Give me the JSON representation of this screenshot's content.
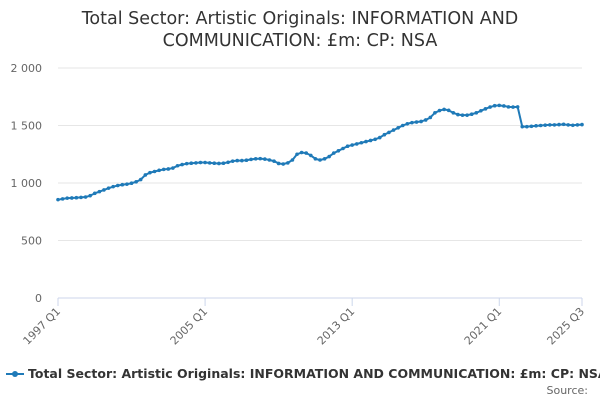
{
  "chart_data": {
    "type": "line",
    "title_lines": [
      "Total Sector: Artistic Originals: INFORMATION AND",
      "COMMUNICATION: £m: CP: NSA"
    ],
    "xlabel": "",
    "ylabel": "",
    "ylim": [
      0,
      2000
    ],
    "yticks": [
      0,
      500,
      1000,
      1500,
      2000
    ],
    "ytick_labels": [
      "0",
      "500",
      "1 000",
      "1 500",
      "2 000"
    ],
    "xticks": [
      "1997 Q1",
      "2005 Q1",
      "2013 Q1",
      "2021 Q1",
      "2025 Q3"
    ],
    "grid": "horizontal",
    "legend_position": "bottom",
    "series": [
      {
        "name": "Total Sector: Artistic Originals: INFORMATION AND COMMUNICATION: £m: CP: NSA",
        "color": "#1f7ab8",
        "start": "1997 Q1",
        "end": "2025 Q3",
        "values": [
          855,
          862,
          868,
          870,
          872,
          875,
          878,
          890,
          910,
          925,
          940,
          955,
          968,
          978,
          985,
          990,
          998,
          1010,
          1030,
          1070,
          1090,
          1100,
          1110,
          1118,
          1122,
          1130,
          1150,
          1160,
          1168,
          1172,
          1175,
          1178,
          1178,
          1175,
          1172,
          1170,
          1172,
          1180,
          1190,
          1195,
          1195,
          1198,
          1205,
          1210,
          1212,
          1208,
          1200,
          1190,
          1170,
          1165,
          1175,
          1200,
          1250,
          1265,
          1260,
          1240,
          1210,
          1200,
          1210,
          1230,
          1260,
          1280,
          1300,
          1320,
          1330,
          1340,
          1350,
          1360,
          1370,
          1380,
          1395,
          1420,
          1440,
          1460,
          1480,
          1500,
          1515,
          1525,
          1530,
          1535,
          1548,
          1570,
          1610,
          1630,
          1640,
          1632,
          1610,
          1595,
          1590,
          1590,
          1598,
          1610,
          1628,
          1645,
          1660,
          1672,
          1675,
          1670,
          1662,
          1660,
          1662,
          1490,
          1490,
          1493,
          1497,
          1500,
          1503,
          1505,
          1505,
          1508,
          1510,
          1505,
          1502,
          1505,
          1508
        ]
      }
    ]
  },
  "legend_label": "Total Sector: Artistic Originals: INFORMATION AND COMMUNICATION: £m: CP: NSA",
  "source_label": "Source:"
}
